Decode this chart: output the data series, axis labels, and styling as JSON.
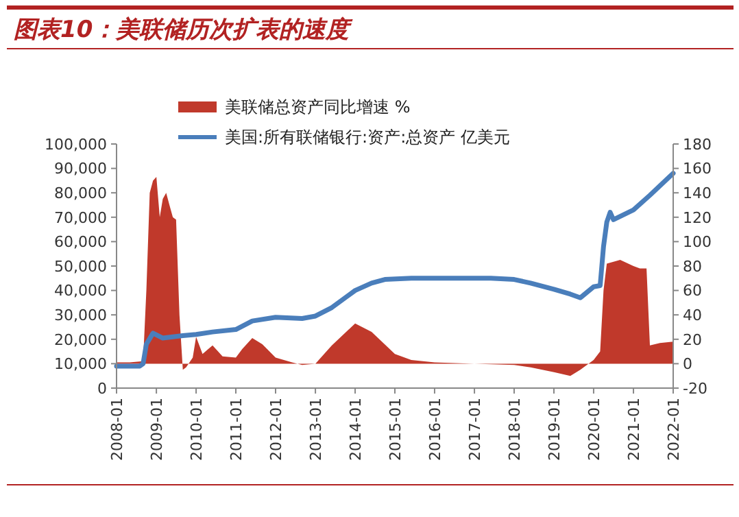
{
  "chart_data": {
    "type": "line",
    "title": "图表10：美联储历次扩表的速度",
    "legend": "top",
    "xlim": [
      "2008-01",
      "2022-01"
    ],
    "xticks": [
      "2008-01",
      "2009-01",
      "2010-01",
      "2011-01",
      "2012-01",
      "2013-01",
      "2014-01",
      "2015-01",
      "2016-01",
      "2017-01",
      "2018-01",
      "2019-01",
      "2020-01",
      "2021-01",
      "2022-01"
    ],
    "ylim": [
      0,
      100000
    ],
    "yticks": [
      {
        "value": 0,
        "label": "0"
      },
      {
        "value": 10000,
        "label": "10,000"
      },
      {
        "value": 20000,
        "label": "20,000"
      },
      {
        "value": 30000,
        "label": "30,000"
      },
      {
        "value": 40000,
        "label": "40,000"
      },
      {
        "value": 50000,
        "label": "50,000"
      },
      {
        "value": 60000,
        "label": "60,000"
      },
      {
        "value": 70000,
        "label": "70,000"
      },
      {
        "value": 80000,
        "label": "80,000"
      },
      {
        "value": 90000,
        "label": "90,000"
      },
      {
        "value": 100000,
        "label": "100,000"
      }
    ],
    "y2lim": [
      -20,
      180
    ],
    "y2ticks": [
      -20,
      0,
      20,
      40,
      60,
      80,
      100,
      120,
      140,
      160,
      180
    ],
    "series": [
      {
        "name": "美联储总资产同比增速 %",
        "type": "area",
        "axis": "y2",
        "color": "#c0392b",
        "x": [
          "2008-01",
          "2008-05",
          "2008-09",
          "2008-10",
          "2008-11",
          "2008-12",
          "2009-01",
          "2009-02",
          "2009-03",
          "2009-04",
          "2009-05",
          "2009-06",
          "2009-07",
          "2009-08",
          "2009-09",
          "2009-10",
          "2009-12",
          "2010-01",
          "2010-03",
          "2010-06",
          "2010-09",
          "2011-01",
          "2011-03",
          "2011-06",
          "2011-09",
          "2012-01",
          "2012-06",
          "2012-09",
          "2013-01",
          "2013-06",
          "2014-01",
          "2014-06",
          "2015-01",
          "2015-06",
          "2016-01",
          "2017-01",
          "2018-01",
          "2018-06",
          "2019-01",
          "2019-06",
          "2019-09",
          "2020-01",
          "2020-03",
          "2020-04",
          "2020-05",
          "2020-09",
          "2021-01",
          "2021-03",
          "2021-05",
          "2021-06",
          "2021-09",
          "2022-01"
        ],
        "values": [
          1,
          1,
          2,
          60,
          140,
          150,
          153,
          120,
          135,
          140,
          130,
          120,
          118,
          40,
          -5,
          -3,
          5,
          22,
          8,
          15,
          6,
          5,
          12,
          21,
          16,
          5,
          1,
          -1,
          0,
          15,
          33,
          26,
          8,
          3,
          1,
          0,
          -1,
          -3,
          -7,
          -10,
          -5,
          3,
          10,
          60,
          82,
          85,
          80,
          78,
          78,
          15,
          17,
          18
        ]
      },
      {
        "name": "美国:所有联储银行:资产:总资产 亿美元",
        "color": "#4a7ebb",
        "x": [
          "2008-01",
          "2008-08",
          "2008-09",
          "2008-10",
          "2008-12",
          "2009-03",
          "2009-06",
          "2009-09",
          "2010-01",
          "2010-06",
          "2011-01",
          "2011-06",
          "2012-01",
          "2012-09",
          "2013-01",
          "2013-06",
          "2014-01",
          "2014-06",
          "2014-10",
          "2015-06",
          "2016-06",
          "2017-06",
          "2018-01",
          "2018-06",
          "2019-01",
          "2019-06",
          "2019-09",
          "2020-01",
          "2020-03",
          "2020-04",
          "2020-05",
          "2020-06",
          "2020-07",
          "2021-01",
          "2021-06",
          "2022-01"
        ],
        "values": [
          9000,
          9000,
          10000,
          18000,
          22500,
          20500,
          21000,
          21500,
          22000,
          23000,
          24000,
          27500,
          29000,
          28500,
          29500,
          33000,
          40000,
          43000,
          44500,
          45000,
          45000,
          45000,
          44500,
          43000,
          40500,
          38500,
          37000,
          41500,
          42000,
          58000,
          68000,
          72000,
          69000,
          73000,
          79000,
          88000
        ]
      }
    ]
  }
}
